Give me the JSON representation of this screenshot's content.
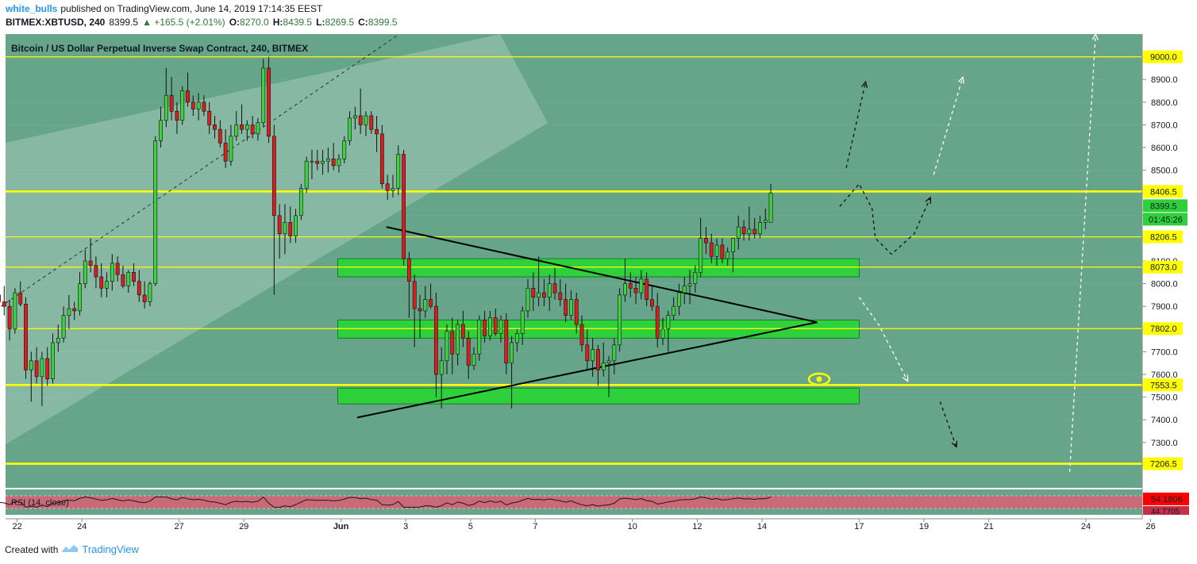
{
  "header": {
    "author": "white_bulls",
    "published_text": "published on TradingView.com, June 14, 2019 17:14:35 EEST",
    "symbol": "BITMEX:XBTUSD, 240",
    "last_price": "8399.5",
    "change": "+165.5 (+2.01%)",
    "open_label": "O:",
    "open": "8270.0",
    "high_label": "H:",
    "high": "8439.5",
    "low_label": "L:",
    "low": "8269.5",
    "close_label": "C:",
    "close": "8399.5"
  },
  "footer": {
    "created_with": "Created with",
    "brand": "TradingView"
  },
  "colors": {
    "chart_bg": "#66a58a",
    "up": "#3fd13f",
    "down": "#d81e1e",
    "level": "#ffff00",
    "zone": "#2ed13c",
    "rsi_bg": "#c86a78",
    "rsi_band": "#e8b8bf",
    "axis_bg": "#ffffff"
  },
  "chart_data": {
    "type": "candlestick",
    "title": "Bitcoin / US Dollar Perpetual Inverse Swap Contract, 240, BITMEX",
    "ylim": [
      7100,
      9100
    ],
    "y_ticks": [
      7200,
      7300,
      7400,
      7500,
      7600,
      7700,
      7800,
      7900,
      8000,
      8100,
      8200,
      8300,
      8400,
      8500,
      8600,
      8700,
      8800,
      8900,
      9000
    ],
    "y_tick_labels": [
      "7200.0",
      "7300.0",
      "7400.0",
      "7500.0",
      "7600.0",
      "7700.0",
      "7800.0",
      "7900.0",
      "8000.0",
      "8100.0",
      "8200.0",
      "8300.0",
      "8400.0",
      "8500.0",
      "8600.0",
      "8700.0",
      "8800.0",
      "8900.0",
      "9000.0"
    ],
    "x_ticks": [
      {
        "day": 22,
        "label": "22"
      },
      {
        "day": 24,
        "label": "24"
      },
      {
        "day": 27,
        "label": "27"
      },
      {
        "day": 29,
        "label": "29"
      },
      {
        "day": 32,
        "label": "Jun"
      },
      {
        "day": 34,
        "label": "3"
      },
      {
        "day": 36,
        "label": "5"
      },
      {
        "day": 38,
        "label": "7"
      },
      {
        "day": 41,
        "label": "10"
      },
      {
        "day": 43,
        "label": "12"
      },
      {
        "day": 45,
        "label": "14"
      },
      {
        "day": 48,
        "label": "17"
      },
      {
        "day": 50,
        "label": "19"
      },
      {
        "day": 52,
        "label": "21"
      },
      {
        "day": 55,
        "label": "24"
      },
      {
        "day": 57,
        "label": "26"
      }
    ],
    "x_unit_note": "day of May 2019 (32 = Jun 1)",
    "horizontal_levels": [
      {
        "price": 9000,
        "label": "9000.0"
      },
      {
        "price": 8406.5,
        "label": "8406.5",
        "thick": true
      },
      {
        "price": 8206.5,
        "label": "8206.5"
      },
      {
        "price": 8073,
        "label": "8073.0"
      },
      {
        "price": 7802,
        "label": "7802.0"
      },
      {
        "price": 7553.5,
        "label": "7553.5",
        "thick": true
      },
      {
        "price": 7206.5,
        "label": "7206.5",
        "thick": true
      }
    ],
    "current_price_label": "8399.5",
    "countdown_label": "01:45:26",
    "zones": [
      {
        "day_start": 31.9,
        "day_end": 48.0,
        "low": 8030,
        "high": 8110
      },
      {
        "day_start": 31.9,
        "day_end": 48.0,
        "low": 7760,
        "high": 7840
      },
      {
        "day_start": 31.9,
        "day_end": 48.0,
        "low": 7470,
        "high": 7540
      }
    ],
    "candles": [
      {
        "o": 7930,
        "h": 8040,
        "l": 7850,
        "c": 8000
      },
      {
        "o": 8000,
        "h": 8060,
        "l": 7920,
        "c": 7950
      },
      {
        "o": 7950,
        "h": 7980,
        "l": 7880,
        "c": 7920
      },
      {
        "o": 7920,
        "h": 7990,
        "l": 7860,
        "c": 7900
      },
      {
        "o": 7900,
        "h": 7930,
        "l": 7750,
        "c": 7800
      },
      {
        "o": 7800,
        "h": 7980,
        "l": 7780,
        "c": 7960
      },
      {
        "o": 7960,
        "h": 8010,
        "l": 7900,
        "c": 7910
      },
      {
        "o": 7910,
        "h": 7940,
        "l": 7580,
        "c": 7620
      },
      {
        "o": 7620,
        "h": 7700,
        "l": 7480,
        "c": 7660
      },
      {
        "o": 7660,
        "h": 7720,
        "l": 7560,
        "c": 7590
      },
      {
        "o": 7590,
        "h": 7700,
        "l": 7460,
        "c": 7670
      },
      {
        "o": 7670,
        "h": 7720,
        "l": 7550,
        "c": 7580
      },
      {
        "o": 7580,
        "h": 7780,
        "l": 7560,
        "c": 7740
      },
      {
        "o": 7740,
        "h": 7820,
        "l": 7700,
        "c": 7760
      },
      {
        "o": 7760,
        "h": 7900,
        "l": 7740,
        "c": 7860
      },
      {
        "o": 7860,
        "h": 7950,
        "l": 7800,
        "c": 7890
      },
      {
        "o": 7890,
        "h": 7920,
        "l": 7840,
        "c": 7880
      },
      {
        "o": 7880,
        "h": 8050,
        "l": 7860,
        "c": 8000
      },
      {
        "o": 8000,
        "h": 8150,
        "l": 7980,
        "c": 8100
      },
      {
        "o": 8100,
        "h": 8200,
        "l": 8050,
        "c": 8080
      },
      {
        "o": 8080,
        "h": 8120,
        "l": 7980,
        "c": 8030
      },
      {
        "o": 8030,
        "h": 8090,
        "l": 7940,
        "c": 7980
      },
      {
        "o": 7980,
        "h": 8050,
        "l": 7940,
        "c": 8010
      },
      {
        "o": 8010,
        "h": 8130,
        "l": 7970,
        "c": 8090
      },
      {
        "o": 8090,
        "h": 8120,
        "l": 8010,
        "c": 8040
      },
      {
        "o": 8040,
        "h": 8080,
        "l": 7980,
        "c": 7990
      },
      {
        "o": 7990,
        "h": 8060,
        "l": 7960,
        "c": 8050
      },
      {
        "o": 8050,
        "h": 8090,
        "l": 7990,
        "c": 8010
      },
      {
        "o": 8010,
        "h": 8060,
        "l": 7920,
        "c": 7950
      },
      {
        "o": 7950,
        "h": 8010,
        "l": 7890,
        "c": 7920
      },
      {
        "o": 7920,
        "h": 8010,
        "l": 7900,
        "c": 8000
      },
      {
        "o": 8000,
        "h": 8650,
        "l": 7990,
        "c": 8630
      },
      {
        "o": 8630,
        "h": 8780,
        "l": 8600,
        "c": 8720
      },
      {
        "o": 8720,
        "h": 8950,
        "l": 8690,
        "c": 8830
      },
      {
        "o": 8830,
        "h": 8910,
        "l": 8720,
        "c": 8760
      },
      {
        "o": 8760,
        "h": 8800,
        "l": 8660,
        "c": 8720
      },
      {
        "o": 8720,
        "h": 8870,
        "l": 8700,
        "c": 8850
      },
      {
        "o": 8850,
        "h": 8930,
        "l": 8780,
        "c": 8800
      },
      {
        "o": 8800,
        "h": 8830,
        "l": 8740,
        "c": 8770
      },
      {
        "o": 8770,
        "h": 8840,
        "l": 8720,
        "c": 8800
      },
      {
        "o": 8800,
        "h": 8830,
        "l": 8740,
        "c": 8760
      },
      {
        "o": 8760,
        "h": 8800,
        "l": 8660,
        "c": 8700
      },
      {
        "o": 8700,
        "h": 8740,
        "l": 8640,
        "c": 8680
      },
      {
        "o": 8680,
        "h": 8720,
        "l": 8600,
        "c": 8620
      },
      {
        "o": 8620,
        "h": 8680,
        "l": 8510,
        "c": 8540
      },
      {
        "o": 8540,
        "h": 8700,
        "l": 8520,
        "c": 8650
      },
      {
        "o": 8650,
        "h": 8760,
        "l": 8630,
        "c": 8700
      },
      {
        "o": 8700,
        "h": 8790,
        "l": 8660,
        "c": 8680
      },
      {
        "o": 8680,
        "h": 8720,
        "l": 8630,
        "c": 8700
      },
      {
        "o": 8700,
        "h": 8740,
        "l": 8640,
        "c": 8660
      },
      {
        "o": 8660,
        "h": 8730,
        "l": 8630,
        "c": 8710
      },
      {
        "o": 8710,
        "h": 8990,
        "l": 8690,
        "c": 8950
      },
      {
        "o": 8950,
        "h": 9000,
        "l": 8620,
        "c": 8650
      },
      {
        "o": 8650,
        "h": 8700,
        "l": 7950,
        "c": 8300
      },
      {
        "o": 8300,
        "h": 8350,
        "l": 8110,
        "c": 8220
      },
      {
        "o": 8220,
        "h": 8350,
        "l": 8130,
        "c": 8270
      },
      {
        "o": 8270,
        "h": 8340,
        "l": 8180,
        "c": 8210
      },
      {
        "o": 8210,
        "h": 8330,
        "l": 8180,
        "c": 8300
      },
      {
        "o": 8300,
        "h": 8440,
        "l": 8280,
        "c": 8420
      },
      {
        "o": 8420,
        "h": 8560,
        "l": 8400,
        "c": 8540
      },
      {
        "o": 8540,
        "h": 8590,
        "l": 8460,
        "c": 8540
      },
      {
        "o": 8540,
        "h": 8590,
        "l": 8500,
        "c": 8530
      },
      {
        "o": 8530,
        "h": 8590,
        "l": 8480,
        "c": 8540
      },
      {
        "o": 8540,
        "h": 8600,
        "l": 8490,
        "c": 8550
      },
      {
        "o": 8550,
        "h": 8620,
        "l": 8500,
        "c": 8520
      },
      {
        "o": 8520,
        "h": 8570,
        "l": 8490,
        "c": 8550
      },
      {
        "o": 8550,
        "h": 8650,
        "l": 8530,
        "c": 8630
      },
      {
        "o": 8630,
        "h": 8760,
        "l": 8610,
        "c": 8730
      },
      {
        "o": 8730,
        "h": 8780,
        "l": 8680,
        "c": 8740
      },
      {
        "o": 8740,
        "h": 8860,
        "l": 8660,
        "c": 8700
      },
      {
        "o": 8700,
        "h": 8760,
        "l": 8650,
        "c": 8740
      },
      {
        "o": 8740,
        "h": 8760,
        "l": 8660,
        "c": 8680
      },
      {
        "o": 8680,
        "h": 8740,
        "l": 8580,
        "c": 8660
      },
      {
        "o": 8660,
        "h": 8700,
        "l": 8420,
        "c": 8440
      },
      {
        "o": 8440,
        "h": 8480,
        "l": 8370,
        "c": 8410
      },
      {
        "o": 8410,
        "h": 8480,
        "l": 8380,
        "c": 8420
      },
      {
        "o": 8420,
        "h": 8610,
        "l": 8390,
        "c": 8570
      },
      {
        "o": 8570,
        "h": 8590,
        "l": 8080,
        "c": 8110
      },
      {
        "o": 8110,
        "h": 8140,
        "l": 7850,
        "c": 8010
      },
      {
        "o": 8010,
        "h": 8040,
        "l": 7720,
        "c": 7890
      },
      {
        "o": 7890,
        "h": 7950,
        "l": 7760,
        "c": 7880
      },
      {
        "o": 7880,
        "h": 7990,
        "l": 7850,
        "c": 7930
      },
      {
        "o": 7930,
        "h": 8000,
        "l": 7890,
        "c": 7900
      },
      {
        "o": 7900,
        "h": 7960,
        "l": 7500,
        "c": 7600
      },
      {
        "o": 7600,
        "h": 7720,
        "l": 7450,
        "c": 7660
      },
      {
        "o": 7660,
        "h": 7820,
        "l": 7600,
        "c": 7790
      },
      {
        "o": 7790,
        "h": 7850,
        "l": 7600,
        "c": 7690
      },
      {
        "o": 7690,
        "h": 7840,
        "l": 7640,
        "c": 7820
      },
      {
        "o": 7820,
        "h": 7880,
        "l": 7720,
        "c": 7760
      },
      {
        "o": 7760,
        "h": 7790,
        "l": 7580,
        "c": 7640
      },
      {
        "o": 7640,
        "h": 7720,
        "l": 7620,
        "c": 7690
      },
      {
        "o": 7690,
        "h": 7860,
        "l": 7660,
        "c": 7840
      },
      {
        "o": 7840,
        "h": 7880,
        "l": 7740,
        "c": 7770
      },
      {
        "o": 7770,
        "h": 7880,
        "l": 7750,
        "c": 7850
      },
      {
        "o": 7850,
        "h": 7890,
        "l": 7770,
        "c": 7780
      },
      {
        "o": 7780,
        "h": 7860,
        "l": 7740,
        "c": 7840
      },
      {
        "o": 7840,
        "h": 7870,
        "l": 7600,
        "c": 7650
      },
      {
        "o": 7650,
        "h": 7770,
        "l": 7450,
        "c": 7740
      },
      {
        "o": 7740,
        "h": 7800,
        "l": 7700,
        "c": 7780
      },
      {
        "o": 7780,
        "h": 7900,
        "l": 7730,
        "c": 7880
      },
      {
        "o": 7880,
        "h": 8020,
        "l": 7850,
        "c": 7980
      },
      {
        "o": 7980,
        "h": 8050,
        "l": 7880,
        "c": 7940
      },
      {
        "o": 7940,
        "h": 8120,
        "l": 7900,
        "c": 7960
      },
      {
        "o": 7960,
        "h": 8020,
        "l": 7900,
        "c": 7940
      },
      {
        "o": 7940,
        "h": 8040,
        "l": 7880,
        "c": 8000
      },
      {
        "o": 8000,
        "h": 8070,
        "l": 7930,
        "c": 7960
      },
      {
        "o": 7960,
        "h": 8020,
        "l": 7900,
        "c": 7930
      },
      {
        "o": 7930,
        "h": 8000,
        "l": 7830,
        "c": 7860
      },
      {
        "o": 7860,
        "h": 7970,
        "l": 7840,
        "c": 7930
      },
      {
        "o": 7930,
        "h": 7960,
        "l": 7780,
        "c": 7820
      },
      {
        "o": 7820,
        "h": 7860,
        "l": 7700,
        "c": 7730
      },
      {
        "o": 7730,
        "h": 7800,
        "l": 7620,
        "c": 7660
      },
      {
        "o": 7660,
        "h": 7760,
        "l": 7590,
        "c": 7710
      },
      {
        "o": 7710,
        "h": 7730,
        "l": 7550,
        "c": 7620
      },
      {
        "o": 7620,
        "h": 7740,
        "l": 7590,
        "c": 7650
      },
      {
        "o": 7650,
        "h": 7680,
        "l": 7500,
        "c": 7660
      },
      {
        "o": 7660,
        "h": 7760,
        "l": 7600,
        "c": 7730
      },
      {
        "o": 7730,
        "h": 7980,
        "l": 7700,
        "c": 7950
      },
      {
        "o": 7950,
        "h": 8110,
        "l": 7920,
        "c": 8000
      },
      {
        "o": 8000,
        "h": 8050,
        "l": 7940,
        "c": 7980
      },
      {
        "o": 7980,
        "h": 8030,
        "l": 7910,
        "c": 7960
      },
      {
        "o": 7960,
        "h": 8060,
        "l": 7930,
        "c": 8020
      },
      {
        "o": 8020,
        "h": 8050,
        "l": 7900,
        "c": 7930
      },
      {
        "o": 7930,
        "h": 7990,
        "l": 7880,
        "c": 7900
      },
      {
        "o": 7900,
        "h": 7960,
        "l": 7720,
        "c": 7760
      },
      {
        "o": 7760,
        "h": 7850,
        "l": 7730,
        "c": 7800
      },
      {
        "o": 7800,
        "h": 7880,
        "l": 7700,
        "c": 7860
      },
      {
        "o": 7860,
        "h": 7940,
        "l": 7840,
        "c": 7900
      },
      {
        "o": 7900,
        "h": 8000,
        "l": 7860,
        "c": 7960
      },
      {
        "o": 7960,
        "h": 8030,
        "l": 7910,
        "c": 7990
      },
      {
        "o": 7990,
        "h": 8060,
        "l": 7910,
        "c": 8000
      },
      {
        "o": 8000,
        "h": 8080,
        "l": 7960,
        "c": 8050
      },
      {
        "o": 8050,
        "h": 8290,
        "l": 8030,
        "c": 8200
      },
      {
        "o": 8200,
        "h": 8250,
        "l": 8130,
        "c": 8180
      },
      {
        "o": 8180,
        "h": 8220,
        "l": 8090,
        "c": 8120
      },
      {
        "o": 8120,
        "h": 8200,
        "l": 8080,
        "c": 8170
      },
      {
        "o": 8170,
        "h": 8200,
        "l": 8090,
        "c": 8110
      },
      {
        "o": 8110,
        "h": 8160,
        "l": 8080,
        "c": 8140
      },
      {
        "o": 8140,
        "h": 8200,
        "l": 8050,
        "c": 8200
      },
      {
        "o": 8200,
        "h": 8300,
        "l": 8150,
        "c": 8250
      },
      {
        "o": 8250,
        "h": 8280,
        "l": 8190,
        "c": 8220
      },
      {
        "o": 8220,
        "h": 8340,
        "l": 8190,
        "c": 8240
      },
      {
        "o": 8240,
        "h": 8290,
        "l": 8200,
        "c": 8220
      },
      {
        "o": 8220,
        "h": 8300,
        "l": 8200,
        "c": 8270
      },
      {
        "o": 8270,
        "h": 8330,
        "l": 8240,
        "c": 8280
      },
      {
        "o": 8270,
        "h": 8440,
        "l": 8270,
        "c": 8400
      }
    ],
    "candle_start_day": 21.1,
    "candle_step_days": 0.1667,
    "triangle": {
      "upper": [
        [
          33.4,
          8250
        ],
        [
          46.7,
          7830
        ]
      ],
      "lower": [
        [
          32.5,
          7410
        ],
        [
          46.7,
          7830
        ]
      ]
    },
    "channel_dashed": [
      [
        21.5,
        7900
      ],
      [
        33.8,
        9100
      ]
    ],
    "projections": [
      {
        "color": "black",
        "points": [
          [
            47.4,
            8340
          ],
          [
            48.0,
            8440
          ],
          [
            48.4,
            8330
          ],
          [
            48.5,
            8200
          ],
          [
            49.0,
            8130
          ],
          [
            49.7,
            8220
          ],
          [
            50.2,
            8380
          ]
        ]
      },
      {
        "color": "black",
        "points": [
          [
            47.6,
            8510
          ],
          [
            48.2,
            8890
          ]
        ]
      },
      {
        "color": "white",
        "points": [
          [
            50.3,
            8480
          ],
          [
            51.2,
            8910
          ]
        ]
      },
      {
        "color": "white",
        "points": [
          [
            48.0,
            7940
          ],
          [
            48.6,
            7820
          ],
          [
            49.5,
            7570
          ]
        ]
      },
      {
        "color": "black",
        "points": [
          [
            50.5,
            7480
          ],
          [
            51.0,
            7280
          ]
        ]
      },
      {
        "color": "white",
        "points": [
          [
            54.5,
            7170
          ],
          [
            55.3,
            9100
          ]
        ]
      }
    ],
    "rsi": {
      "label": "RSI (14, close)",
      "value_label": "54.1806",
      "lower_label": "44.7705"
    }
  }
}
